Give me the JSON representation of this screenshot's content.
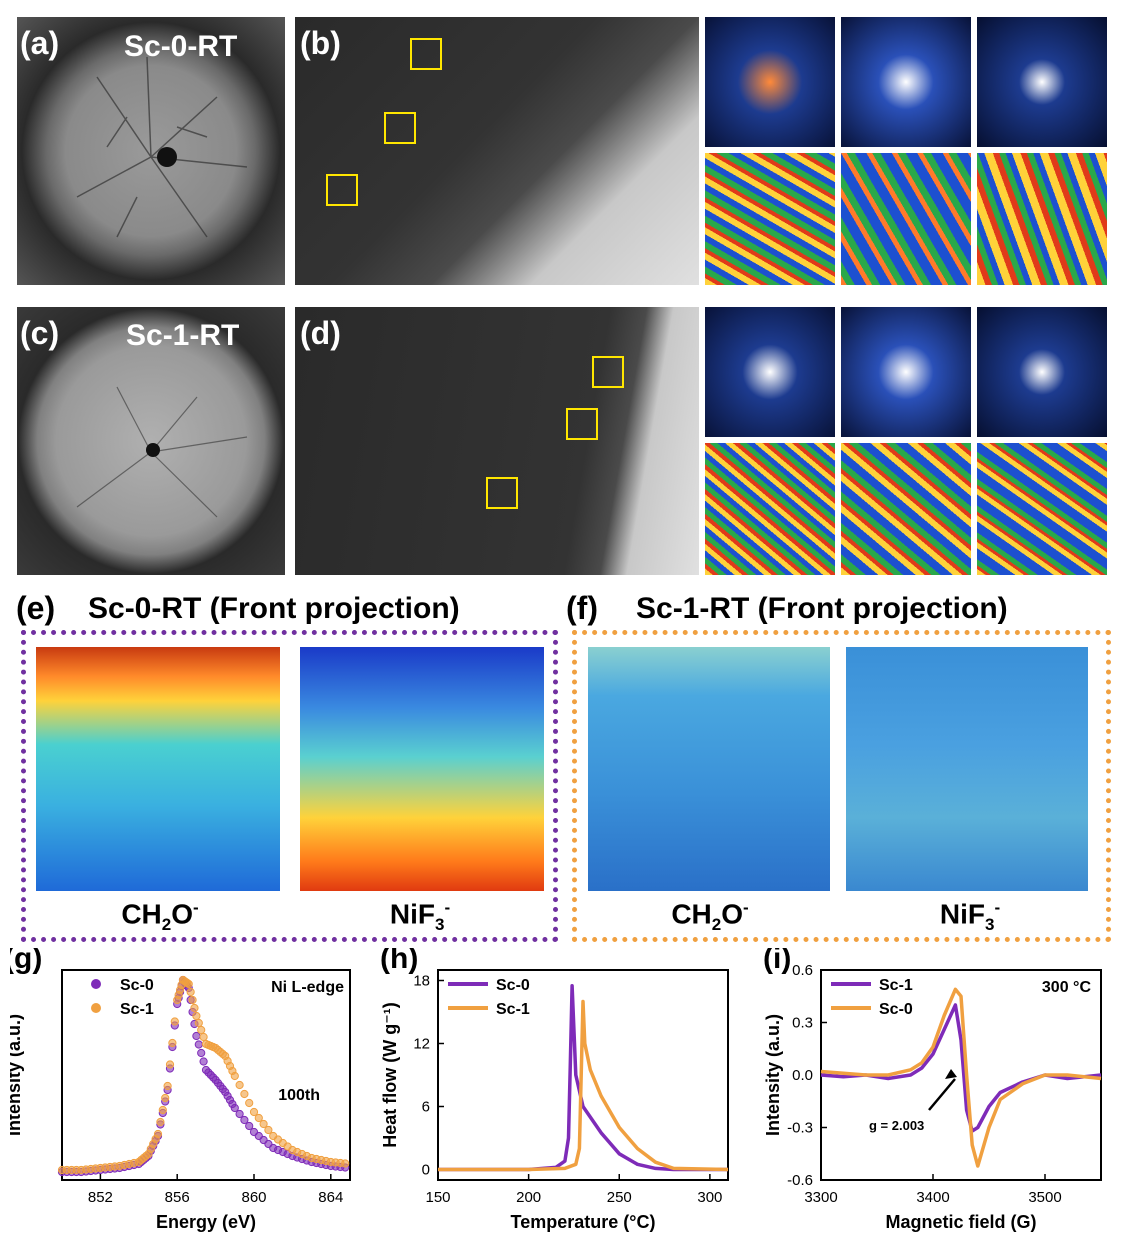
{
  "panels": {
    "a": {
      "label": "(a)",
      "sample": "Sc-0-RT"
    },
    "b": {
      "label": "(b)"
    },
    "c": {
      "label": "(c)",
      "sample": "Sc-1-RT"
    },
    "d": {
      "label": "(d)"
    },
    "e": {
      "label": "(e)",
      "title": "Sc-0-RT (Front projection)",
      "maps": [
        {
          "base": "CH",
          "sub1": "2",
          "mid": "O",
          "sup": "-"
        },
        {
          "base": "NiF",
          "sub1": "3",
          "mid": "",
          "sup": "-"
        }
      ]
    },
    "f": {
      "label": "(f)",
      "title": "Sc-1-RT (Front projection)",
      "maps": [
        {
          "base": "CH",
          "sub1": "2",
          "mid": "O",
          "sup": "-"
        },
        {
          "base": "NiF",
          "sub1": "3",
          "mid": "",
          "sup": "-"
        }
      ]
    }
  },
  "colors": {
    "sc0": "#7e2bb8",
    "sc1": "#f0a040",
    "frame_e": "#7030a0",
    "frame_f": "#f0a040",
    "box": "#ffe600"
  },
  "chart_data": [
    {
      "panel": "(g)",
      "type": "scatter",
      "title": "",
      "xlabel": "Energy (eV)",
      "ylabel": "Intensity (a.u.)",
      "xlim": [
        850,
        865
      ],
      "ylim": [
        0,
        1.05
      ],
      "xticks": [
        852,
        856,
        860,
        864
      ],
      "annotations": [
        "Ni L-edge",
        "100th"
      ],
      "legend": "top-left",
      "series": [
        {
          "name": "Sc-0",
          "x": [
            850,
            851,
            852,
            853,
            854,
            854.5,
            855,
            855.5,
            856,
            856.3,
            856.6,
            857,
            857.5,
            858,
            858.5,
            859,
            860,
            861,
            862,
            863,
            864,
            865
          ],
          "y": [
            0.04,
            0.04,
            0.05,
            0.06,
            0.08,
            0.12,
            0.22,
            0.45,
            0.88,
            1.0,
            0.96,
            0.72,
            0.55,
            0.5,
            0.44,
            0.36,
            0.24,
            0.16,
            0.12,
            0.09,
            0.07,
            0.06
          ]
        },
        {
          "name": "Sc-1",
          "x": [
            850,
            851,
            852,
            853,
            854,
            854.5,
            855,
            855.5,
            856,
            856.3,
            856.6,
            857,
            857.5,
            858,
            858.5,
            859,
            860,
            861,
            862,
            863,
            864,
            865
          ],
          "y": [
            0.05,
            0.05,
            0.06,
            0.07,
            0.09,
            0.13,
            0.23,
            0.47,
            0.9,
            1.0,
            0.98,
            0.82,
            0.68,
            0.66,
            0.62,
            0.52,
            0.34,
            0.22,
            0.15,
            0.11,
            0.09,
            0.08
          ]
        }
      ]
    },
    {
      "panel": "(h)",
      "type": "line",
      "title": "",
      "xlabel": "Temperature (°C)",
      "ylabel": "Heat flow (W g⁻¹)",
      "xlim": [
        150,
        310
      ],
      "ylim": [
        -1,
        19
      ],
      "xticks": [
        150,
        200,
        250,
        300
      ],
      "yticks": [
        0,
        6,
        12,
        18
      ],
      "legend": "top-left",
      "series": [
        {
          "name": "Sc-0",
          "x": [
            150,
            200,
            215,
            220,
            222,
            223,
            224,
            226,
            230,
            240,
            250,
            260,
            270,
            280,
            310
          ],
          "y": [
            0,
            0,
            0.2,
            0.8,
            3,
            10,
            17.5,
            9,
            6,
            3.5,
            1.5,
            0.5,
            0.1,
            0,
            0
          ]
        },
        {
          "name": "Sc-1",
          "x": [
            150,
            200,
            220,
            226,
            228,
            229,
            230,
            231,
            234,
            240,
            250,
            260,
            270,
            280,
            310
          ],
          "y": [
            0,
            0,
            0.1,
            0.5,
            2,
            9,
            16,
            12,
            9.5,
            7,
            4,
            2,
            0.7,
            0.1,
            0
          ]
        }
      ]
    },
    {
      "panel": "(i)",
      "type": "line",
      "title": "",
      "xlabel": "Magnetic field (G)",
      "ylabel": "Intensity (a.u.)",
      "xlim": [
        3300,
        3550
      ],
      "ylim": [
        -0.6,
        0.6
      ],
      "xticks": [
        3300,
        3400,
        3500
      ],
      "yticks": [
        -0.6,
        -0.3,
        0.0,
        0.3,
        0.6
      ],
      "annotations": [
        "300 °C",
        "g = 2.003"
      ],
      "legend": "top-left",
      "series": [
        {
          "name": "Sc-1",
          "x": [
            3300,
            3320,
            3340,
            3360,
            3380,
            3390,
            3400,
            3410,
            3420,
            3425,
            3430,
            3435,
            3440,
            3450,
            3460,
            3480,
            3500,
            3520,
            3550
          ],
          "y": [
            0.0,
            -0.01,
            0.0,
            -0.02,
            0.0,
            0.04,
            0.12,
            0.26,
            0.4,
            0.2,
            -0.2,
            -0.32,
            -0.3,
            -0.18,
            -0.1,
            -0.04,
            0.0,
            -0.02,
            0.0
          ]
        },
        {
          "name": "Sc-0",
          "x": [
            3300,
            3320,
            3340,
            3360,
            3380,
            3390,
            3400,
            3410,
            3420,
            3425,
            3430,
            3435,
            3440,
            3450,
            3460,
            3480,
            3500,
            3520,
            3550
          ],
          "y": [
            0.02,
            0.01,
            0.0,
            0.0,
            0.03,
            0.07,
            0.16,
            0.34,
            0.49,
            0.45,
            0.0,
            -0.4,
            -0.52,
            -0.3,
            -0.14,
            -0.05,
            0.0,
            0.0,
            -0.02
          ]
        }
      ]
    }
  ]
}
